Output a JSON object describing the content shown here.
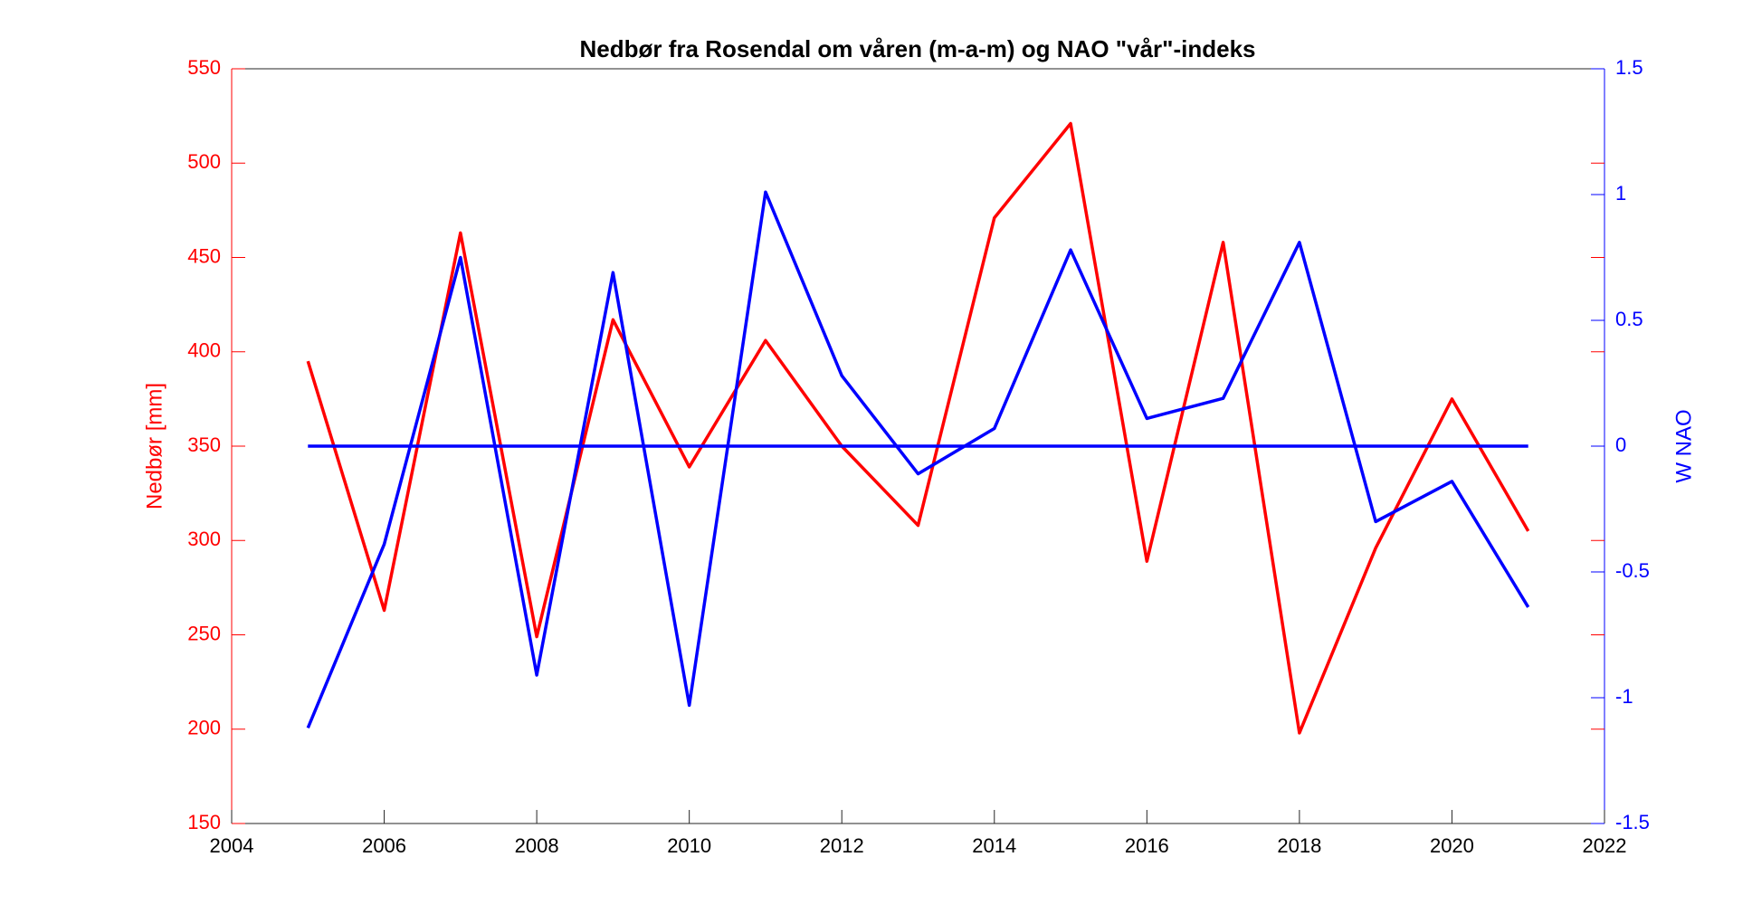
{
  "chart_data": {
    "type": "line",
    "title": "Nedbør fra Rosendal om våren (m-a-m) og NAO \"vår\"-indeks",
    "ylabel": "Nedbør [mm]",
    "y2label": "W NAO",
    "x": [
      2005,
      2006,
      2007,
      2008,
      2009,
      2010,
      2011,
      2012,
      2013,
      2014,
      2015,
      2016,
      2017,
      2018,
      2019,
      2020,
      2021
    ],
    "series": [
      {
        "color": "#ff0000",
        "axis": "y",
        "values": [
          395,
          263,
          463,
          249,
          417,
          339,
          406,
          350,
          308,
          471,
          521,
          289,
          458,
          198,
          296,
          375,
          305
        ]
      },
      {
        "color": "#0000ff",
        "axis": "y2",
        "values": [
          -1.12,
          -0.39,
          0.75,
          -0.91,
          0.69,
          -1.03,
          1.01,
          0.28,
          -0.11,
          0.07,
          0.78,
          0.11,
          0.19,
          0.81,
          -0.3,
          -0.14,
          -0.64
        ]
      },
      {
        "color": "#0000ff",
        "axis": "y2",
        "values": [
          0,
          0,
          0,
          0,
          0,
          0,
          0,
          0,
          0,
          0,
          0,
          0,
          0,
          0,
          0,
          0,
          0
        ]
      }
    ],
    "xlim": [
      2004,
      2022
    ],
    "xticks": [
      2004,
      2006,
      2008,
      2010,
      2012,
      2014,
      2016,
      2018,
      2020,
      2022
    ],
    "ylim": [
      150,
      550
    ],
    "yticks": [
      150,
      200,
      250,
      300,
      350,
      400,
      450,
      500,
      550
    ],
    "y2lim": [
      -1.5,
      1.5
    ],
    "y2ticks": [
      -1.5,
      -1,
      -0.5,
      0,
      0.5,
      1,
      1.5
    ],
    "ycolor": "#ff0000",
    "y2color": "#0000ff",
    "grid": false
  }
}
